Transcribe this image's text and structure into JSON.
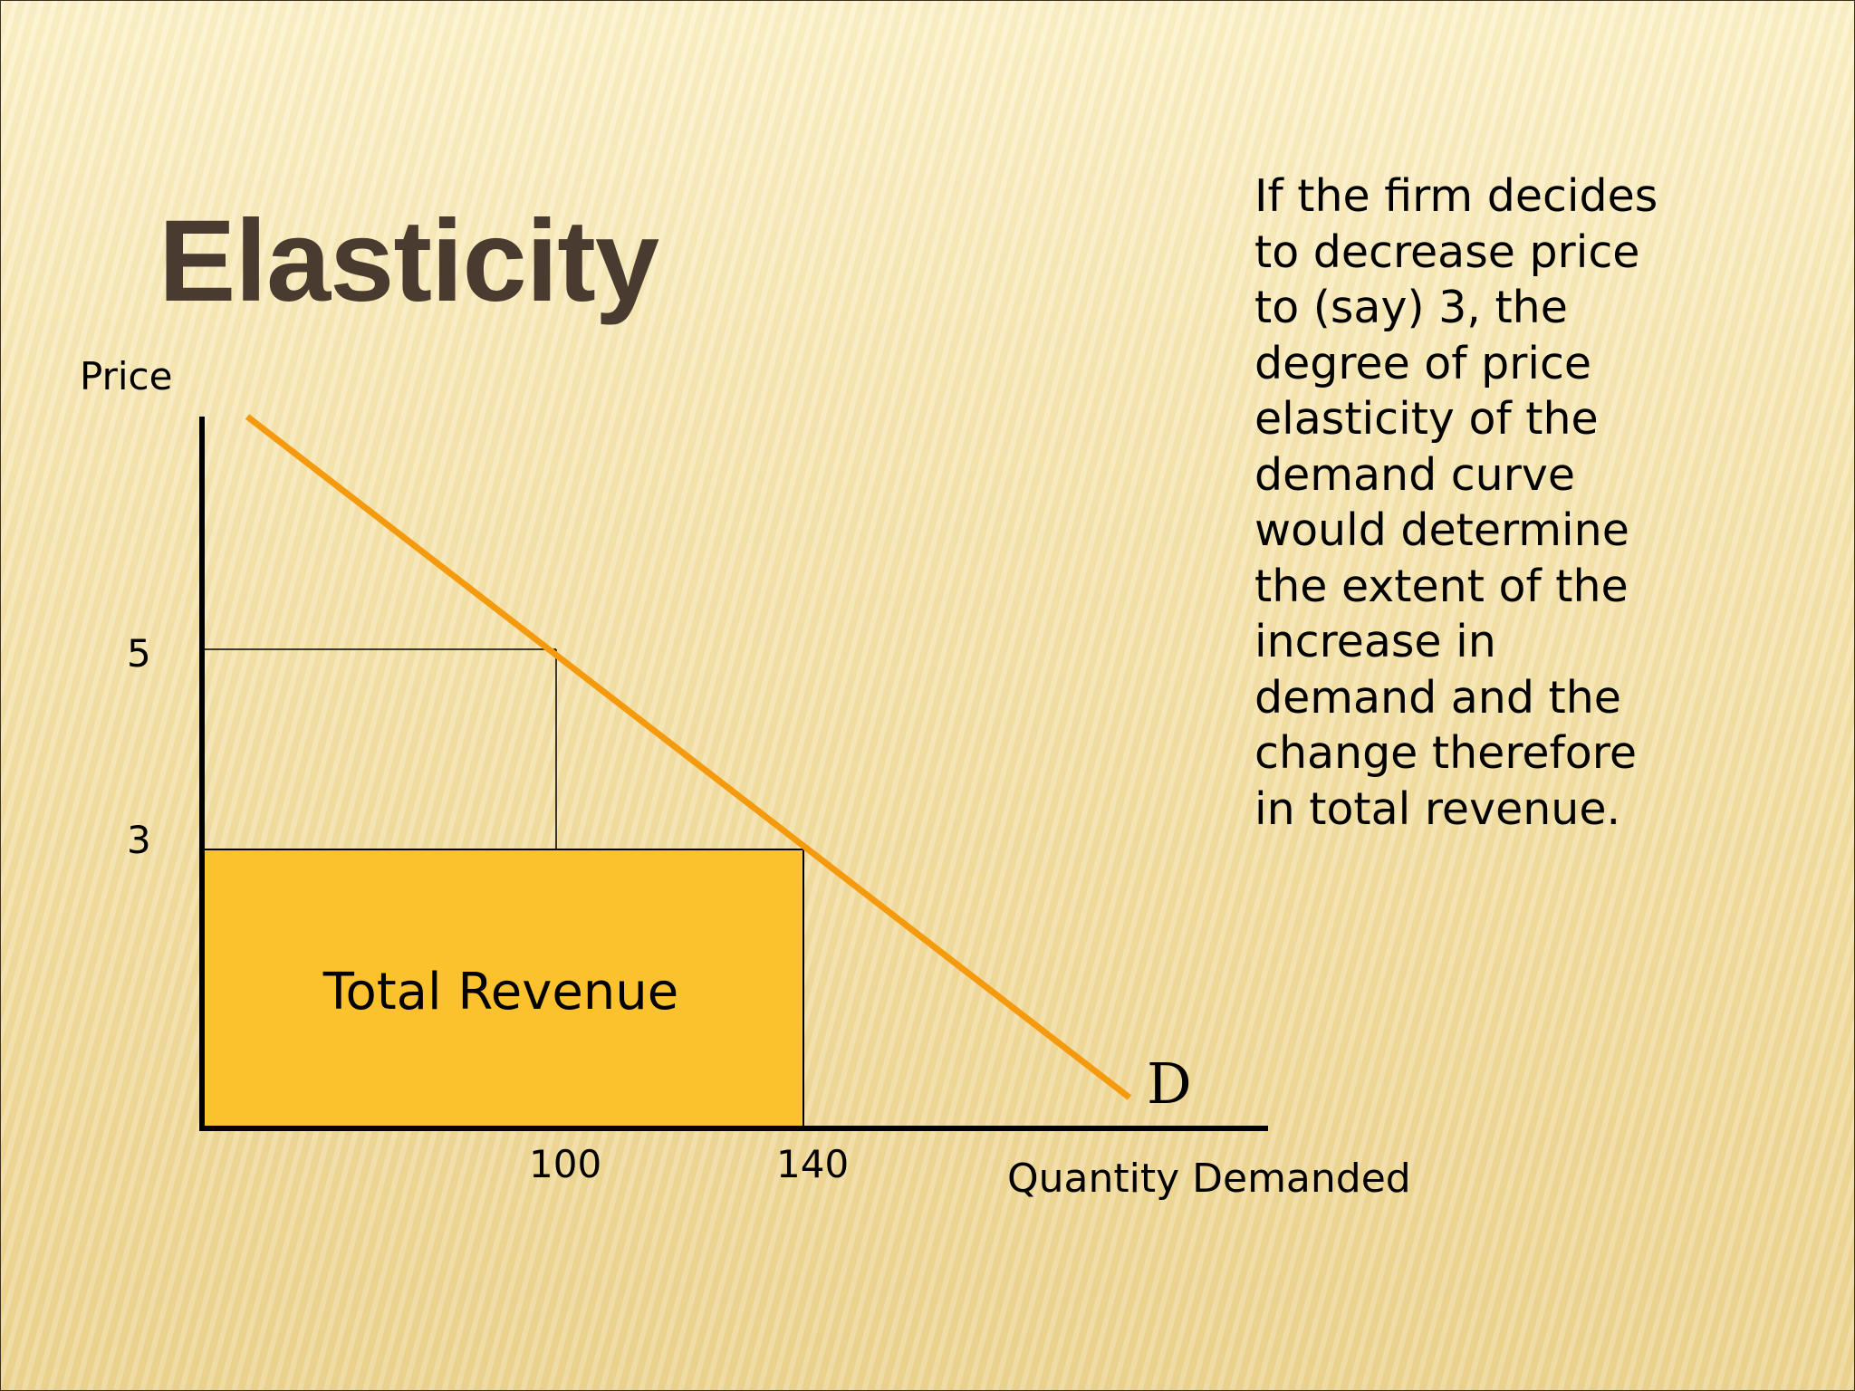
{
  "slide": {
    "title": "Elasticity",
    "text_lines": [
      "If the firm decides",
      "to decrease price",
      "to (say) 3, the",
      "degree of price",
      "elasticity of the",
      "demand curve",
      "would determine",
      "the extent of the",
      "increase in",
      "demand and the",
      "change therefore",
      "in total revenue."
    ]
  },
  "diagram": {
    "y_axis_label": "Price",
    "x_axis_label": "Quantity Demanded",
    "price_ticks": [
      "5",
      "3"
    ],
    "quantity_ticks": [
      "100",
      "140"
    ],
    "revenue_label": "Total Revenue",
    "curve_label": "D",
    "colors": {
      "curve": "#f59a0c",
      "revenue_fill": "#fcc22e",
      "axis": "#000000",
      "title": "#4a3b30"
    }
  }
}
